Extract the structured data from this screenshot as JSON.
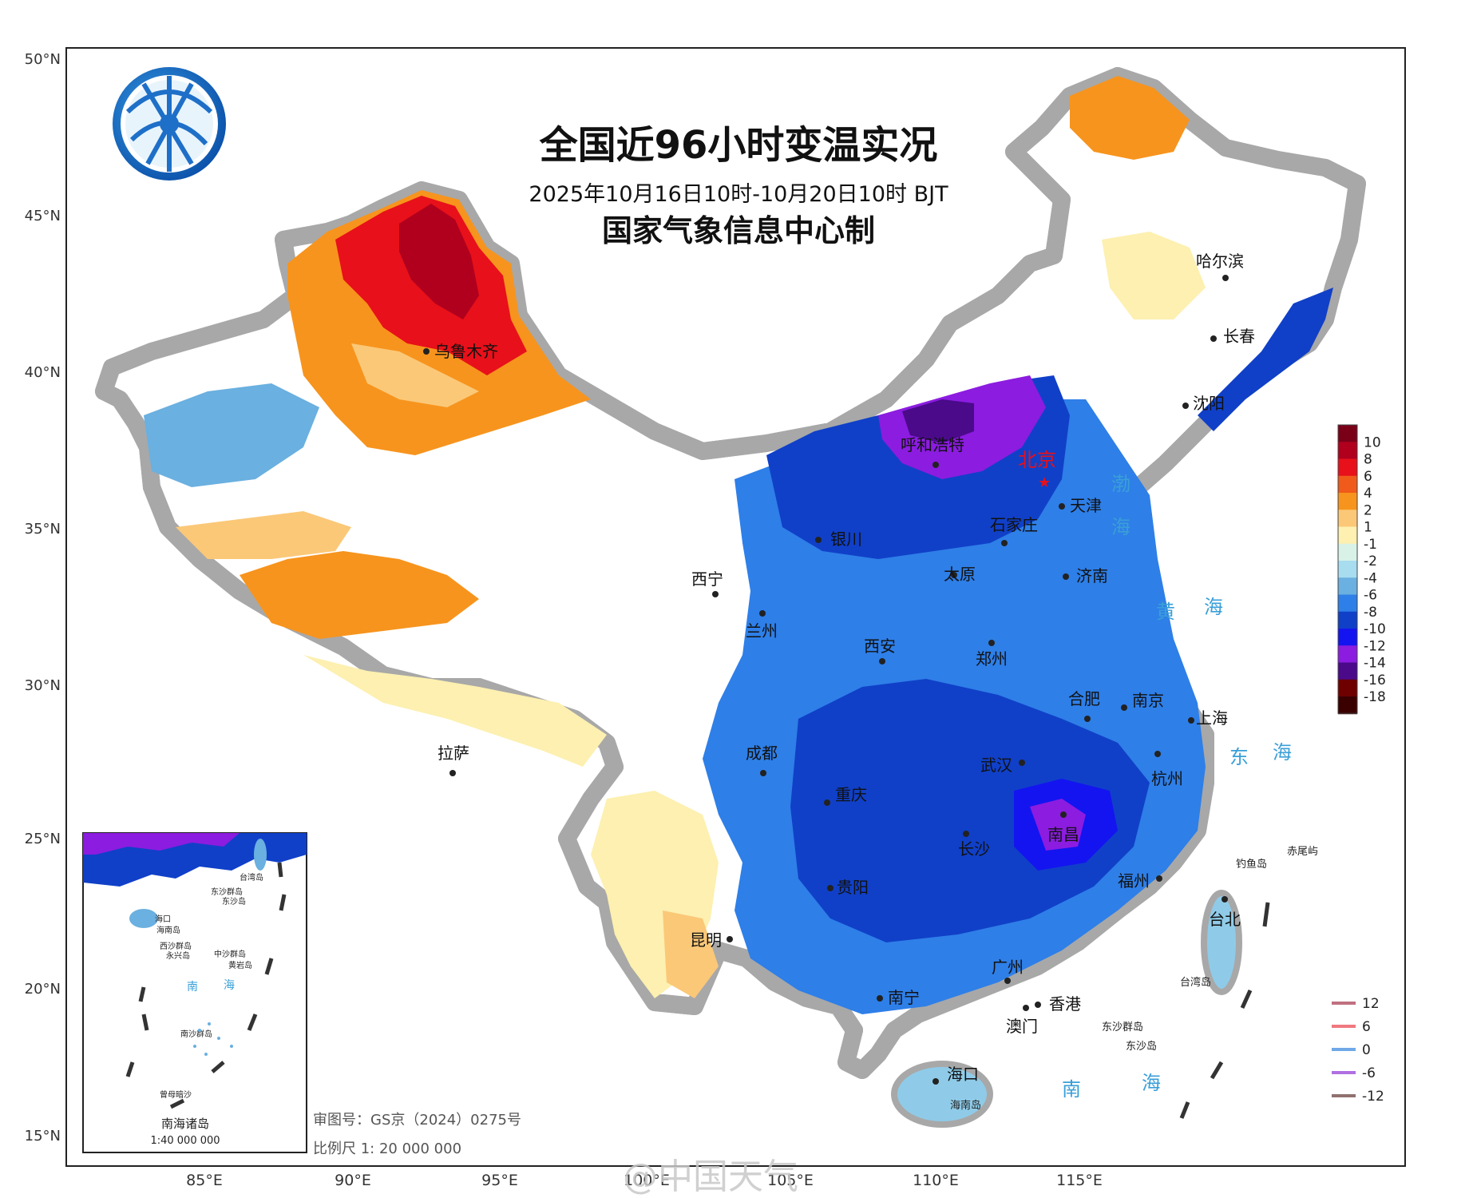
{
  "header": {
    "title": "全国近96小时变温实况",
    "subtitle": "2025年10月16日10时-10月20日10时 BJT",
    "agency": "国家气象信息中心制"
  },
  "lat_labels": [
    "50°N",
    "45°N",
    "40°N",
    "35°N",
    "30°N",
    "25°N",
    "20°N",
    "15°N"
  ],
  "lon_labels": [
    "85°E",
    "90°E",
    "95°E",
    "100°E",
    "105°E",
    "110°E",
    "115°E"
  ],
  "cities": [
    {
      "name": "乌鲁木齐"
    },
    {
      "name": "哈尔滨"
    },
    {
      "name": "长春"
    },
    {
      "name": "沈阳"
    },
    {
      "name": "呼和浩特"
    },
    {
      "name": "北京"
    },
    {
      "name": "天津"
    },
    {
      "name": "石家庄"
    },
    {
      "name": "银川"
    },
    {
      "name": "太原"
    },
    {
      "name": "济南"
    },
    {
      "name": "西宁"
    },
    {
      "name": "兰州"
    },
    {
      "name": "西安"
    },
    {
      "name": "郑州"
    },
    {
      "name": "合肥"
    },
    {
      "name": "南京"
    },
    {
      "name": "上海"
    },
    {
      "name": "拉萨"
    },
    {
      "name": "成都"
    },
    {
      "name": "武汉"
    },
    {
      "name": "杭州"
    },
    {
      "name": "重庆"
    },
    {
      "name": "长沙"
    },
    {
      "name": "南昌"
    },
    {
      "name": "贵阳"
    },
    {
      "name": "福州"
    },
    {
      "name": "台北"
    },
    {
      "name": "昆明"
    },
    {
      "name": "广州"
    },
    {
      "name": "南宁"
    },
    {
      "name": "香港"
    },
    {
      "name": "澳门"
    },
    {
      "name": "海口"
    }
  ],
  "seas": [
    {
      "name": "渤"
    },
    {
      "name": "海"
    },
    {
      "name": "黄"
    },
    {
      "name": "海"
    },
    {
      "name": "东"
    },
    {
      "name": "海"
    },
    {
      "name": "南"
    },
    {
      "name": "海"
    }
  ],
  "islands": [
    {
      "name": "钓鱼岛"
    },
    {
      "name": "赤尾屿"
    },
    {
      "name": "台湾岛"
    },
    {
      "name": "东沙群岛"
    },
    {
      "name": "东沙岛"
    },
    {
      "name": "海南岛"
    }
  ],
  "inset": {
    "caption": "南海诸岛",
    "scale": "1:40 000 000",
    "labels": [
      "台湾岛",
      "东沙群岛",
      "东沙岛",
      "海口",
      "海南岛",
      "西沙群岛",
      "永兴岛",
      "中沙群岛",
      "黄岩岛",
      "南",
      "海",
      "南沙群岛",
      "曾母暗沙"
    ]
  },
  "map_notes": {
    "review_no": "审图号：GS京（2024）0275号",
    "scale": "比例尺  1: 20 000 000"
  },
  "watermark": "@中国天气",
  "colorbar": {
    "labels": [
      "10",
      "8",
      "6",
      "4",
      "2",
      "1",
      "-1",
      "-2",
      "-4",
      "-6",
      "-8",
      "-10",
      "-12",
      "-14",
      "-16",
      "-18"
    ],
    "colors": [
      "#7a0018",
      "#b0001e",
      "#e8101a",
      "#f05a1a",
      "#f7941d",
      "#fbc878",
      "#fdf0b0",
      "#d8f2e8",
      "#a8dcef",
      "#6ab0e0",
      "#2e7fe8",
      "#1040c8",
      "#1414f0",
      "#8c1ce0",
      "#4a0a8a",
      "#6e0000",
      "#3a0000"
    ]
  },
  "contour_legend": [
    {
      "label": "12",
      "color": "#c07080"
    },
    {
      "label": "6",
      "color": "#f07880"
    },
    {
      "label": "0",
      "color": "#70a8e8"
    },
    {
      "label": "-6",
      "color": "#b070e0"
    },
    {
      "label": "-12",
      "color": "#907070"
    }
  ],
  "colors": {
    "frame": "#222222",
    "coast_shadow": "#a8a8a8",
    "ocean": "#ffffff",
    "title": "#111111",
    "sea_label": "#3a9fd8"
  }
}
